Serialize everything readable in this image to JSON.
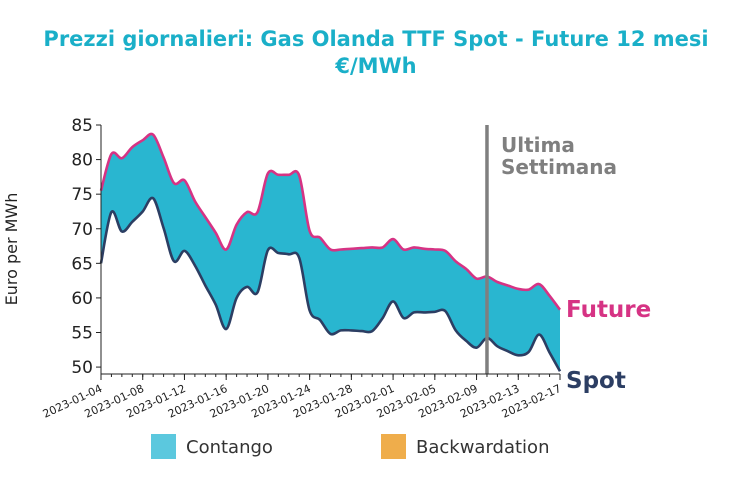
{
  "chart_data": {
    "type": "area",
    "title_line1": "Prezzi giornalieri: Gas Olanda TTF Spot - Future 12 mesi",
    "title_line2": "€/MWh",
    "xlabel": "",
    "ylabel": "Euro per MWh",
    "ylim": [
      49,
      85
    ],
    "yticks": [
      50,
      55,
      60,
      65,
      70,
      75,
      80,
      85
    ],
    "xlim": [
      "2023-01-04",
      "2023-02-17"
    ],
    "xticks": [
      "2023-01-04",
      "2023-01-08",
      "2023-01-12",
      "2023-01-16",
      "2023-01-20",
      "2023-01-24",
      "2023-01-28",
      "2023-02-01",
      "2023-02-05",
      "2023-02-09",
      "2023-02-13",
      "2023-02-17"
    ],
    "grid": false,
    "dates": [
      "2023-01-04",
      "2023-01-05",
      "2023-01-06",
      "2023-01-07",
      "2023-01-08",
      "2023-01-09",
      "2023-01-10",
      "2023-01-11",
      "2023-01-12",
      "2023-01-13",
      "2023-01-14",
      "2023-01-15",
      "2023-01-16",
      "2023-01-17",
      "2023-01-18",
      "2023-01-19",
      "2023-01-20",
      "2023-01-21",
      "2023-01-22",
      "2023-01-23",
      "2023-01-24",
      "2023-01-25",
      "2023-01-26",
      "2023-01-27",
      "2023-01-28",
      "2023-01-29",
      "2023-01-30",
      "2023-01-31",
      "2023-02-01",
      "2023-02-02",
      "2023-02-03",
      "2023-02-04",
      "2023-02-05",
      "2023-02-06",
      "2023-02-07",
      "2023-02-08",
      "2023-02-09",
      "2023-02-10",
      "2023-02-11",
      "2023-02-12",
      "2023-02-13",
      "2023-02-14",
      "2023-02-15",
      "2023-02-16",
      "2023-02-17"
    ],
    "series": [
      {
        "name": "Future",
        "color": "#D63384",
        "values": [
          75.5,
          80.8,
          80.2,
          81.8,
          82.8,
          83.6,
          80.3,
          76.6,
          77.0,
          74.0,
          71.7,
          69.4,
          67.0,
          70.6,
          72.4,
          72.4,
          78.0,
          77.8,
          77.8,
          77.7,
          69.7,
          68.7,
          67.0,
          67.0,
          67.1,
          67.2,
          67.3,
          67.3,
          68.5,
          67.0,
          67.3,
          67.1,
          67.0,
          66.8,
          65.3,
          64.2,
          62.8,
          63.1,
          62.3,
          61.8,
          61.3,
          61.2,
          62.0,
          60.3,
          58.3
        ]
      },
      {
        "name": "Spot",
        "color": "#2C3E63",
        "values": [
          65.0,
          72.4,
          69.6,
          71.0,
          72.5,
          74.4,
          70.1,
          65.3,
          66.8,
          64.7,
          61.8,
          59.0,
          55.5,
          60.0,
          61.6,
          60.8,
          66.9,
          66.5,
          66.3,
          65.8,
          58.2,
          56.8,
          54.8,
          55.3,
          55.3,
          55.2,
          55.2,
          57.1,
          59.5,
          57.1,
          57.9,
          57.9,
          58.0,
          58.1,
          55.3,
          53.8,
          52.8,
          54.2,
          53.0,
          52.3,
          51.7,
          52.2,
          54.7,
          52.1,
          49.4
        ]
      }
    ],
    "fill_colors": {
      "contango": "#29B6D0",
      "backwardation": "#F0A64A"
    },
    "vline": {
      "date": "2023-02-10",
      "label_line1": "Ultima",
      "label_line2": "Settimana",
      "color": "#7F7F7F"
    },
    "legend": {
      "position": "bottom",
      "items": [
        {
          "label": "Contango",
          "color": "#5BC8DE"
        },
        {
          "label": "Backwardation",
          "color": "#EFAD4B"
        }
      ]
    }
  }
}
